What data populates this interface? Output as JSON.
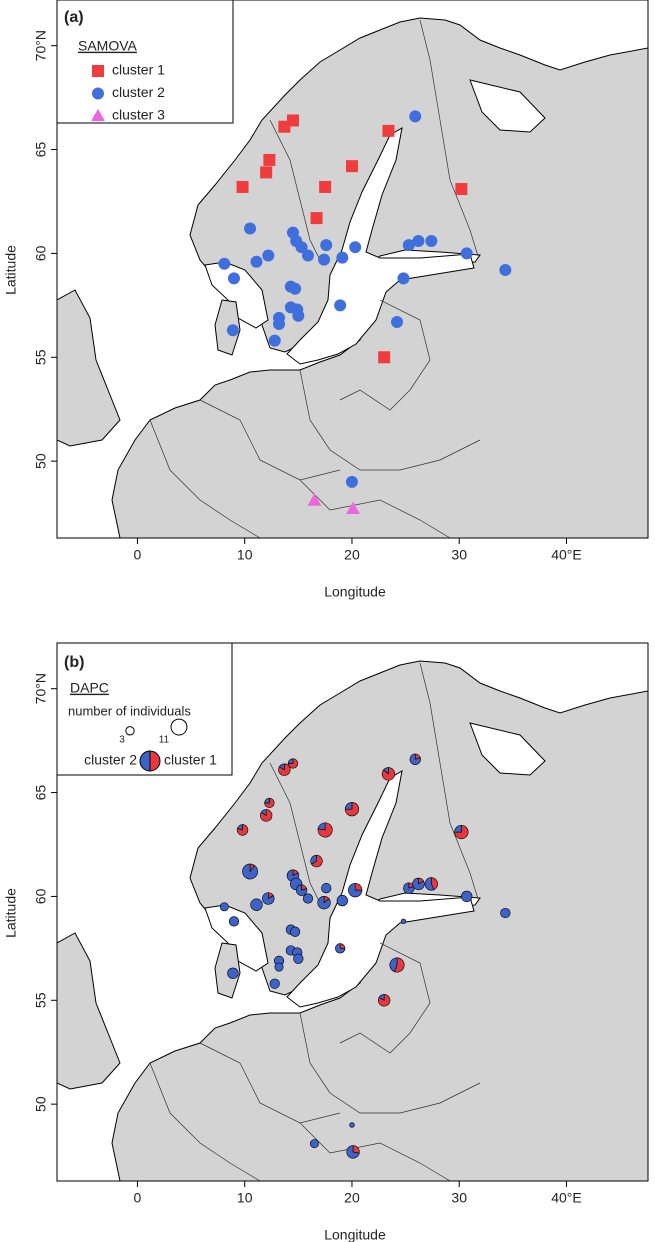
{
  "chart_data": [
    {
      "type": "scatter",
      "label": "(a)",
      "legend_title": "SAMOVA",
      "xlabel": "Longitude",
      "ylabel": "Latitude",
      "xlim": [
        -7.5,
        47.6
      ],
      "ylim": [
        46.3,
        72.2
      ],
      "xticks": [
        0,
        10,
        20,
        30,
        {
          "value": 40,
          "label": "40°E"
        }
      ],
      "yticks": [
        50,
        55,
        60,
        65,
        {
          "value": 70,
          "label": "70°N"
        }
      ],
      "series": [
        {
          "name": "cluster 1",
          "color": "#f03c3c",
          "marker": "square",
          "x": [
            9.8,
            12.0,
            12.3,
            13.7,
            14.5,
            23.4,
            20.0,
            17.5,
            16.7,
            30.2,
            23.0
          ],
          "y": [
            63.2,
            63.9,
            64.5,
            66.1,
            66.4,
            65.9,
            64.2,
            63.2,
            61.7,
            63.1,
            55.0
          ]
        },
        {
          "name": "cluster 2",
          "color": "#3f6fdc",
          "marker": "circle",
          "x": [
            25.9,
            10.5,
            8.1,
            9.0,
            11.1,
            12.2,
            14.5,
            14.8,
            15.3,
            15.9,
            17.6,
            17.4,
            19.1,
            20.3,
            14.3,
            14.7,
            13.2,
            13.2,
            14.3,
            14.9,
            15.0,
            8.9,
            12.8,
            18.9,
            24.8,
            24.2,
            25.3,
            26.2,
            27.4,
            30.7,
            34.3,
            20.0
          ],
          "y": [
            66.6,
            61.2,
            59.5,
            58.8,
            59.6,
            59.9,
            61.0,
            60.6,
            60.3,
            59.9,
            60.4,
            59.7,
            59.8,
            60.3,
            58.4,
            58.3,
            56.9,
            56.6,
            57.4,
            57.3,
            57.0,
            56.3,
            55.8,
            57.5,
            58.8,
            56.7,
            60.4,
            60.6,
            60.6,
            60.0,
            59.2,
            49.0
          ]
        },
        {
          "name": "cluster 3",
          "color": "#ee66dd",
          "marker": "triangle",
          "x": [
            16.5,
            20.1
          ],
          "y": [
            48.1,
            47.7
          ]
        }
      ]
    },
    {
      "type": "pie-map",
      "label": "(b)",
      "legend_title": "DAPC",
      "size_label": "number of individuals",
      "size_legend": [
        3,
        11
      ],
      "xlabel": "Longitude",
      "ylabel": "Latitude",
      "xlim": [
        -7.5,
        47.6
      ],
      "ylim": [
        46.3,
        72.2
      ],
      "xticks": [
        0,
        10,
        20,
        30,
        {
          "value": 40,
          "label": "40°E"
        }
      ],
      "yticks": [
        50,
        55,
        60,
        65,
        {
          "value": 70,
          "label": "70°N"
        }
      ],
      "x": [
        9.8,
        12.0,
        12.3,
        13.7,
        14.5,
        23.4,
        20.0,
        17.5,
        16.7,
        30.2,
        23.0,
        25.9,
        10.5,
        8.1,
        9.0,
        11.1,
        12.2,
        14.5,
        14.8,
        15.3,
        15.9,
        17.6,
        17.4,
        19.1,
        20.3,
        14.3,
        14.7,
        13.2,
        13.2,
        14.3,
        14.9,
        15.0,
        8.9,
        12.8,
        18.9,
        24.8,
        24.2,
        25.3,
        26.2,
        27.4,
        30.7,
        34.3,
        20.0,
        16.5,
        20.1
      ],
      "y": [
        63.2,
        63.9,
        64.5,
        66.1,
        66.4,
        65.9,
        64.2,
        63.2,
        61.7,
        63.1,
        55.0,
        66.6,
        61.2,
        59.5,
        58.8,
        59.6,
        59.9,
        61.0,
        60.6,
        60.3,
        59.9,
        60.4,
        59.7,
        59.8,
        60.3,
        58.4,
        58.3,
        56.9,
        56.6,
        57.4,
        57.3,
        57.0,
        56.3,
        55.8,
        57.5,
        58.8,
        56.7,
        60.4,
        60.6,
        60.6,
        60.0,
        59.2,
        49.0,
        48.1,
        47.7
      ],
      "series": [
        {
          "name": "cluster 1",
          "color": "#e8383d",
          "values": [
            4,
            5,
            3,
            5,
            3,
            6,
            6,
            7,
            4,
            6,
            5,
            1,
            1,
            0,
            0,
            0,
            1,
            1,
            0,
            1,
            0,
            0,
            1,
            0,
            2,
            0,
            0,
            0,
            0,
            0,
            0,
            0,
            0,
            0,
            1,
            0,
            5,
            1,
            1,
            3,
            0,
            0,
            0,
            0,
            2
          ]
        },
        {
          "name": "cluster 2",
          "color": "#3d63c8",
          "values": [
            1,
            1,
            1,
            1,
            1,
            1,
            2,
            2,
            2,
            2,
            1,
            4,
            9,
            3,
            4,
            6,
            5,
            5,
            6,
            4,
            4,
            4,
            6,
            5,
            6,
            4,
            4,
            4,
            3,
            4,
            4,
            4,
            5,
            4,
            3,
            1,
            4,
            4,
            5,
            4,
            5,
            4,
            1,
            3,
            5
          ]
        }
      ]
    }
  ]
}
